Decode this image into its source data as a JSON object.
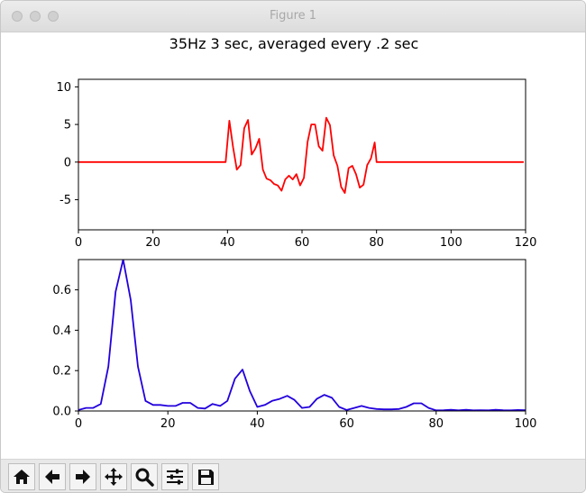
{
  "window": {
    "title": "Figure 1"
  },
  "figure": {
    "suptitle": "35Hz 3 sec, averaged every .2 sec"
  },
  "chart_data": [
    {
      "type": "line",
      "color": "#ff0000",
      "xlim": [
        0,
        120
      ],
      "ylim": [
        -9,
        11
      ],
      "xticks": [
        0,
        20,
        40,
        60,
        80,
        100,
        120
      ],
      "yticks": [
        -5,
        0,
        5,
        10
      ],
      "grid": false,
      "x": [
        0,
        2,
        4,
        6,
        8,
        10,
        12,
        14,
        16,
        18,
        20,
        22,
        24,
        26,
        28,
        30,
        32,
        34,
        36,
        38,
        39.5,
        40.5,
        41.5,
        42.5,
        43.5,
        44.5,
        45.5,
        46.5,
        47.5,
        48.5,
        49.5,
        50.5,
        51.5,
        52.5,
        53.5,
        54.5,
        55.5,
        56.5,
        57.5,
        58.5,
        59.5,
        60.5,
        61.5,
        62.5,
        63.5,
        64.5,
        65.5,
        66.5,
        67.5,
        68.5,
        69.5,
        70.5,
        71.5,
        72.5,
        73.5,
        74.5,
        75.5,
        76.5,
        77.5,
        78.5,
        79.5,
        80,
        82,
        84,
        86,
        88,
        90,
        92,
        94,
        96,
        98,
        100,
        102,
        104,
        106,
        108,
        110,
        112,
        114,
        116,
        118,
        119.5
      ],
      "values": [
        0,
        0,
        0,
        0,
        0,
        0,
        0,
        0,
        0,
        0,
        0,
        0,
        0,
        0,
        0,
        0,
        0,
        0,
        0,
        0,
        0,
        5.5,
        2,
        -1,
        -0.4,
        4.5,
        5.6,
        1,
        1.8,
        3.1,
        -1,
        -2.2,
        -2.4,
        -2.9,
        -3.1,
        -3.8,
        -2.3,
        -1.8,
        -2.3,
        -1.6,
        -3.1,
        -2.1,
        2.7,
        5,
        5,
        2.1,
        1.5,
        5.9,
        4.9,
        0.9,
        -0.5,
        -3.3,
        -4.1,
        -0.8,
        -0.5,
        -1.6,
        -3.4,
        -3,
        -0.4,
        0.5,
        2.6,
        0,
        0,
        0,
        0,
        0,
        0,
        0,
        0,
        0,
        0,
        0,
        0,
        0,
        0,
        0,
        0,
        0,
        0,
        0,
        0,
        0
      ]
    },
    {
      "type": "line",
      "color": "#2200dd",
      "xlim": [
        0,
        100
      ],
      "ylim": [
        0,
        0.75
      ],
      "xticks": [
        0,
        20,
        40,
        60,
        80,
        100
      ],
      "yticks": [
        0,
        0.2,
        0.4,
        0.6
      ],
      "ytick_labels": [
        "0.0",
        "0.2",
        "0.4",
        "0.6"
      ],
      "grid": false,
      "x": [
        0,
        1.7,
        3.3,
        5,
        6.7,
        8.3,
        10,
        11.7,
        13.3,
        15,
        16.7,
        18.3,
        20,
        21.7,
        23.3,
        25,
        26.7,
        28.3,
        30,
        31.7,
        33.3,
        35,
        36.7,
        38.3,
        40,
        41.7,
        43.3,
        45,
        46.7,
        48.3,
        50,
        51.7,
        53.3,
        55,
        56.7,
        58.3,
        60,
        61.7,
        63.3,
        65,
        66.7,
        68.3,
        70,
        71.7,
        73.3,
        75,
        76.7,
        78.3,
        80,
        81.7,
        83.3,
        85,
        86.7,
        88.3,
        90,
        91.7,
        93.3,
        95,
        96.7,
        98.3,
        100
      ],
      "values": [
        0.005,
        0.015,
        0.015,
        0.035,
        0.22,
        0.59,
        0.75,
        0.55,
        0.22,
        0.05,
        0.03,
        0.03,
        0.025,
        0.025,
        0.04,
        0.04,
        0.015,
        0.012,
        0.035,
        0.025,
        0.05,
        0.16,
        0.205,
        0.1,
        0.02,
        0.03,
        0.05,
        0.06,
        0.075,
        0.055,
        0.015,
        0.02,
        0.06,
        0.08,
        0.065,
        0.02,
        0.005,
        0.015,
        0.025,
        0.015,
        0.01,
        0.008,
        0.008,
        0.01,
        0.02,
        0.038,
        0.038,
        0.015,
        0.003,
        0.004,
        0.006,
        0.003,
        0.006,
        0.003,
        0.004,
        0.003,
        0.006,
        0.004,
        0.003,
        0.005,
        0.004
      ]
    }
  ],
  "toolbar": {
    "buttons": [
      {
        "name": "home-button",
        "icon": "home-icon"
      },
      {
        "name": "back-button",
        "icon": "arrow-left-icon"
      },
      {
        "name": "forward-button",
        "icon": "arrow-right-icon"
      },
      {
        "name": "pan-button",
        "icon": "move-icon"
      },
      {
        "name": "zoom-button",
        "icon": "magnifier-icon"
      },
      {
        "name": "subplots-button",
        "icon": "sliders-icon"
      },
      {
        "name": "save-button",
        "icon": "floppy-disk-icon"
      }
    ]
  }
}
